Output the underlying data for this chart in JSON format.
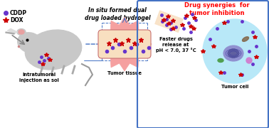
{
  "bg_color": "#ffffff",
  "border_color": "#4472c4",
  "title_drug_synergy": "Drug synergies  for\ntumor inhibition",
  "title_insitu": "In situ formed dual\ndrug loaded hydrogel",
  "label_cddp": "CDDP",
  "label_dox": "DOX",
  "label_injection": "Intratumoral\ninjection as sol",
  "label_tumor_tissue": "Tumor tissue",
  "label_tumor_cell": "Tumor cell",
  "label_faster": "Faster drugs\nrelease at\npH < 7.0, 37 °C",
  "cddp_color": "#6633cc",
  "dox_color": "#cc0000",
  "pink_bg": "#f5a0a0",
  "peach_bg": "#f5c8a0",
  "light_peach": "#f8dfc0"
}
